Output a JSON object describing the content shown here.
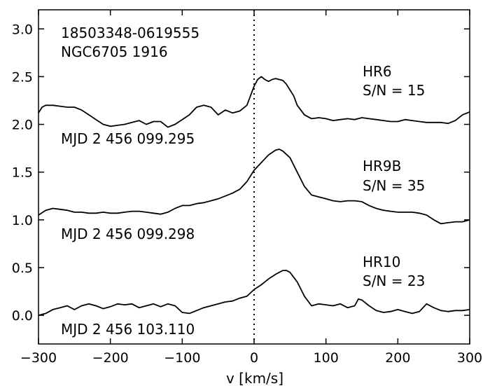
{
  "chart_data": {
    "type": "line",
    "title": "",
    "xlabel": "v [km/s]",
    "ylabel": "",
    "xlim": [
      -300,
      300
    ],
    "ylim": [
      -0.3,
      3.2
    ],
    "x_ticks": [
      -300,
      -200,
      -100,
      0,
      100,
      200,
      300
    ],
    "x_tick_labels": [
      "−300",
      "−200",
      "−100",
      "0",
      "100",
      "200",
      "300"
    ],
    "y_ticks": [
      0.0,
      0.5,
      1.0,
      1.5,
      2.0,
      2.5,
      3.0
    ],
    "y_tick_labels": [
      "0.0",
      "0.5",
      "1.0",
      "1.5",
      "2.0",
      "2.5",
      "3.0"
    ],
    "grid": false,
    "reference_line": {
      "x": 0,
      "style": "dotted"
    },
    "star_id": "18503348-0619555",
    "cluster_id": "NGC6705 1916",
    "series": [
      {
        "name": "HR6",
        "snr_label": "S/N = 15",
        "mjd_label": "MJD 2 456 099.295",
        "x": [
          -300,
          -295,
          -290,
          -280,
          -270,
          -260,
          -250,
          -240,
          -230,
          -220,
          -210,
          -200,
          -190,
          -180,
          -170,
          -160,
          -150,
          -140,
          -130,
          -120,
          -110,
          -100,
          -90,
          -80,
          -70,
          -60,
          -50,
          -40,
          -30,
          -20,
          -10,
          -5,
          0,
          5,
          10,
          15,
          20,
          25,
          30,
          35,
          40,
          45,
          50,
          55,
          60,
          70,
          80,
          90,
          100,
          110,
          120,
          130,
          140,
          150,
          160,
          170,
          180,
          190,
          200,
          210,
          220,
          230,
          240,
          250,
          260,
          270,
          280,
          290,
          300
        ],
        "y": [
          2.12,
          2.18,
          2.2,
          2.2,
          2.19,
          2.18,
          2.18,
          2.15,
          2.1,
          2.05,
          2.0,
          1.98,
          1.99,
          2.0,
          2.02,
          2.04,
          2.0,
          2.03,
          2.03,
          1.97,
          2.0,
          2.05,
          2.1,
          2.18,
          2.2,
          2.18,
          2.1,
          2.15,
          2.12,
          2.14,
          2.2,
          2.3,
          2.4,
          2.47,
          2.5,
          2.47,
          2.45,
          2.47,
          2.48,
          2.47,
          2.46,
          2.42,
          2.36,
          2.3,
          2.2,
          2.1,
          2.06,
          2.07,
          2.06,
          2.04,
          2.05,
          2.06,
          2.05,
          2.07,
          2.06,
          2.05,
          2.04,
          2.03,
          2.03,
          2.05,
          2.04,
          2.03,
          2.02,
          2.02,
          2.02,
          2.01,
          2.04,
          2.1,
          2.13
        ]
      },
      {
        "name": "HR9B",
        "snr_label": "S/N = 35",
        "mjd_label": "MJD 2 456 099.298",
        "x": [
          -300,
          -290,
          -280,
          -270,
          -260,
          -250,
          -240,
          -230,
          -220,
          -210,
          -200,
          -190,
          -180,
          -170,
          -160,
          -150,
          -140,
          -130,
          -120,
          -110,
          -100,
          -90,
          -80,
          -70,
          -60,
          -50,
          -40,
          -30,
          -20,
          -10,
          0,
          10,
          20,
          30,
          35,
          40,
          50,
          60,
          70,
          80,
          90,
          100,
          110,
          120,
          130,
          140,
          150,
          160,
          170,
          180,
          190,
          200,
          210,
          220,
          230,
          240,
          250,
          260,
          270,
          280,
          290,
          300
        ],
        "y": [
          1.05,
          1.1,
          1.12,
          1.11,
          1.1,
          1.08,
          1.08,
          1.07,
          1.07,
          1.08,
          1.07,
          1.07,
          1.08,
          1.09,
          1.09,
          1.08,
          1.07,
          1.06,
          1.08,
          1.12,
          1.15,
          1.15,
          1.17,
          1.18,
          1.2,
          1.22,
          1.25,
          1.28,
          1.32,
          1.4,
          1.52,
          1.6,
          1.68,
          1.73,
          1.74,
          1.72,
          1.65,
          1.5,
          1.35,
          1.26,
          1.24,
          1.22,
          1.2,
          1.19,
          1.2,
          1.2,
          1.19,
          1.15,
          1.12,
          1.1,
          1.09,
          1.08,
          1.08,
          1.08,
          1.07,
          1.05,
          1.0,
          0.96,
          0.97,
          0.98,
          0.98,
          1.0
        ]
      },
      {
        "name": "HR10",
        "snr_label": "S/N = 23",
        "mjd_label": "MJD 2 456 103.110",
        "x": [
          -300,
          -290,
          -280,
          -270,
          -260,
          -250,
          -240,
          -230,
          -220,
          -210,
          -200,
          -190,
          -180,
          -170,
          -160,
          -150,
          -140,
          -130,
          -120,
          -110,
          -100,
          -90,
          -80,
          -70,
          -60,
          -50,
          -40,
          -30,
          -20,
          -10,
          0,
          10,
          20,
          30,
          40,
          45,
          50,
          60,
          70,
          80,
          90,
          100,
          110,
          120,
          130,
          140,
          145,
          150,
          160,
          170,
          180,
          190,
          200,
          210,
          220,
          230,
          240,
          250,
          260,
          270,
          280,
          290,
          300
        ],
        "y": [
          0.0,
          0.02,
          0.06,
          0.08,
          0.1,
          0.06,
          0.1,
          0.12,
          0.1,
          0.07,
          0.09,
          0.12,
          0.11,
          0.12,
          0.08,
          0.1,
          0.12,
          0.09,
          0.12,
          0.1,
          0.03,
          0.02,
          0.05,
          0.08,
          0.1,
          0.12,
          0.14,
          0.15,
          0.18,
          0.2,
          0.27,
          0.32,
          0.38,
          0.43,
          0.47,
          0.47,
          0.45,
          0.35,
          0.2,
          0.1,
          0.12,
          0.11,
          0.1,
          0.12,
          0.08,
          0.1,
          0.17,
          0.16,
          0.1,
          0.05,
          0.03,
          0.04,
          0.06,
          0.04,
          0.02,
          0.04,
          0.12,
          0.08,
          0.05,
          0.04,
          0.05,
          0.05,
          0.06
        ]
      }
    ]
  }
}
